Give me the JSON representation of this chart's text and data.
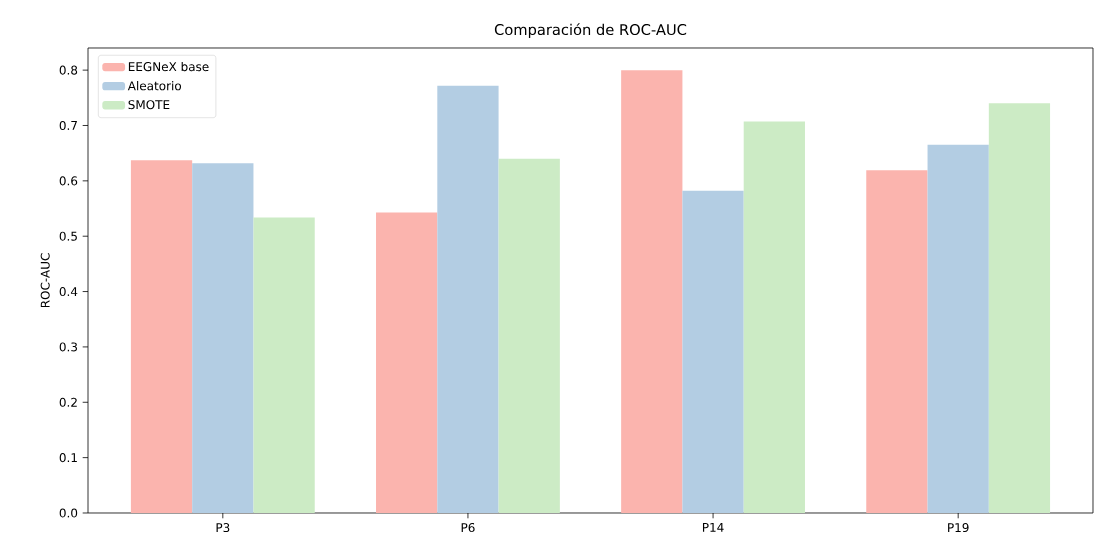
{
  "chart_data": {
    "type": "bar",
    "title": "Comparación de ROC-AUC",
    "ylabel": "ROC-AUC",
    "categories": [
      "P3",
      "P6",
      "P14",
      "P19"
    ],
    "series": [
      {
        "name": "EEGNeX base",
        "color": "#fbb4ae",
        "values": [
          0.637,
          0.543,
          0.8,
          0.619
        ]
      },
      {
        "name": "Aleatorio",
        "color": "#b3cde3",
        "values": [
          0.632,
          0.772,
          0.582,
          0.665
        ]
      },
      {
        "name": "SMOTE",
        "color": "#ccebc5",
        "values": [
          0.534,
          0.64,
          0.707,
          0.74
        ]
      }
    ],
    "ylim": [
      0,
      0.84
    ],
    "yticks": [
      {
        "value": 0,
        "label": "0.0"
      },
      0.1,
      0.2,
      0.3,
      0.4,
      0.5,
      0.6,
      0.7,
      0.8
    ],
    "legend": "top left",
    "grid": false
  }
}
